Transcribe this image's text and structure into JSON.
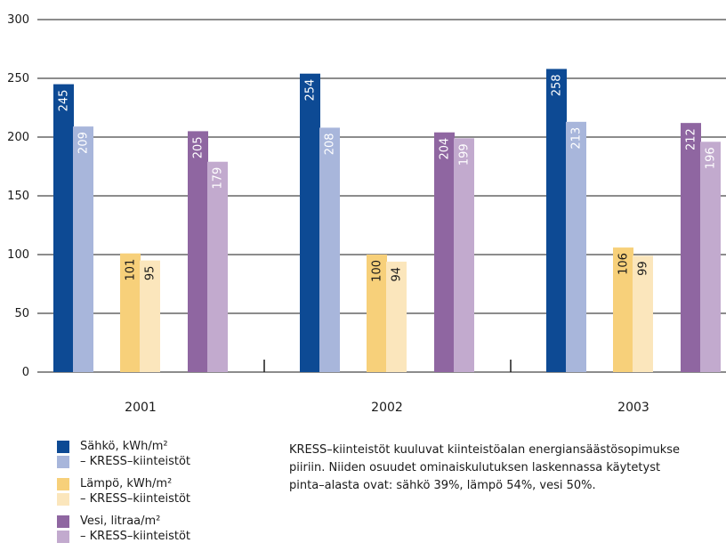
{
  "chart_data": {
    "type": "bar",
    "categories": [
      "2001",
      "2002",
      "2003"
    ],
    "ylim": [
      0,
      300
    ],
    "yticks": [
      "0",
      "50",
      "100",
      "150",
      "200",
      "250",
      "300"
    ],
    "grid": true,
    "series": [
      {
        "name": "Sähkö, kWh/m²",
        "color": "#0d4a94",
        "values": [
          245,
          254,
          258
        ],
        "labels": [
          "245",
          "254",
          "258"
        ]
      },
      {
        "name": "– KRESS–kiinteistöt",
        "color": "#a8b6db",
        "values": [
          209,
          208,
          213
        ],
        "labels": [
          "209",
          "208",
          "213"
        ]
      },
      {
        "name": "Lämpö, kWh/m²",
        "color": "#f7d07a",
        "values": [
          101,
          100,
          106
        ],
        "labels": [
          "101",
          "100",
          "106"
        ]
      },
      {
        "name": "– KRESS–kiinteistöt",
        "color": "#fbe6bc",
        "values": [
          95,
          94,
          99
        ],
        "labels": [
          "95",
          "94",
          "99"
        ]
      },
      {
        "name": "Vesi, litraa/m²",
        "color": "#8f66a1",
        "values": [
          205,
          204,
          212
        ],
        "labels": [
          "205",
          "204",
          "212"
        ]
      },
      {
        "name": "– KRESS–kiinteistöt",
        "color": "#c2aace",
        "values": [
          179,
          199,
          196
        ],
        "labels": [
          "179",
          "199",
          "196"
        ]
      }
    ],
    "legend": {
      "placement": "bottom-left",
      "groups": [
        {
          "main": "Sähkö, kWh/m²",
          "sub": "– KRESS–kiinteistöt",
          "main_color": "#0d4a94",
          "sub_color": "#a8b6db"
        },
        {
          "main": "Lämpö, kWh/m²",
          "sub": "– KRESS–kiinteistöt",
          "main_color": "#f7d07a",
          "sub_color": "#fbe6bc"
        },
        {
          "main": "Vesi, litraa/m²",
          "sub": "– KRESS–kiinteistöt",
          "main_color": "#8f66a1",
          "sub_color": "#c2aace"
        }
      ]
    },
    "annotation": [
      "KRESS–kiinteistöt kuuluvat kiinteistöalan energiansäästösopimukse",
      "piiriin. Niiden osuudet ominaiskulutuksen laskennassa käytetyst",
      "pinta–alasta ovat: sähkö 39%, lämpö 54%, vesi 50%."
    ]
  }
}
